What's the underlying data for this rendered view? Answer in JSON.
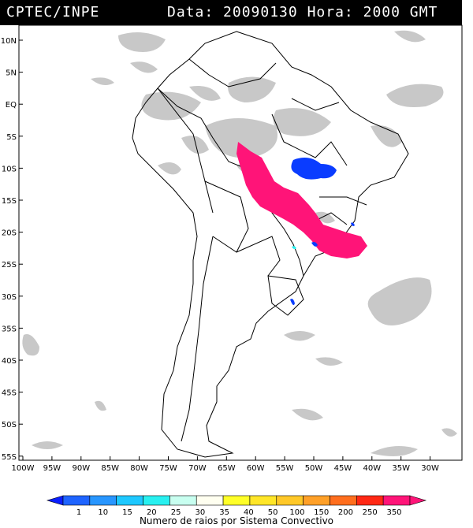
{
  "header": {
    "agency": "CPTEC/INPE",
    "date_label": "Data:",
    "date": "20090130",
    "hour_label": "Hora:",
    "hour": "2000 GMT"
  },
  "lat_labels": [
    "10N",
    "5N",
    "EQ",
    "5S",
    "10S",
    "15S",
    "20S",
    "25S",
    "30S",
    "35S",
    "40S",
    "45S",
    "50S",
    "55S"
  ],
  "lon_labels": [
    "100W",
    "95W",
    "90W",
    "85W",
    "80W",
    "75W",
    "70W",
    "65W",
    "60W",
    "55W",
    "50W",
    "45W",
    "40W",
    "35W",
    "30W"
  ],
  "legend": {
    "values": [
      "1",
      "10",
      "15",
      "20",
      "25",
      "30",
      "35",
      "40",
      "50",
      "100",
      "150",
      "200",
      "250",
      "350"
    ],
    "colors": [
      "#0a1eff",
      "#1e64ff",
      "#2896ff",
      "#1ec8ff",
      "#28f0f0",
      "#c8fff0",
      "#fffff0",
      "#ffff28",
      "#ffe628",
      "#ffc828",
      "#ffa028",
      "#ff6e1e",
      "#ff2814",
      "#ff1478",
      "#ff1478"
    ],
    "caption": "Numero de raios por Sistema Convectivo"
  },
  "colors": {
    "header_bg": "#000000",
    "cloud": "#c8c8c8",
    "convective_high": "#ff1478",
    "convective_low": "#0a3cff"
  }
}
